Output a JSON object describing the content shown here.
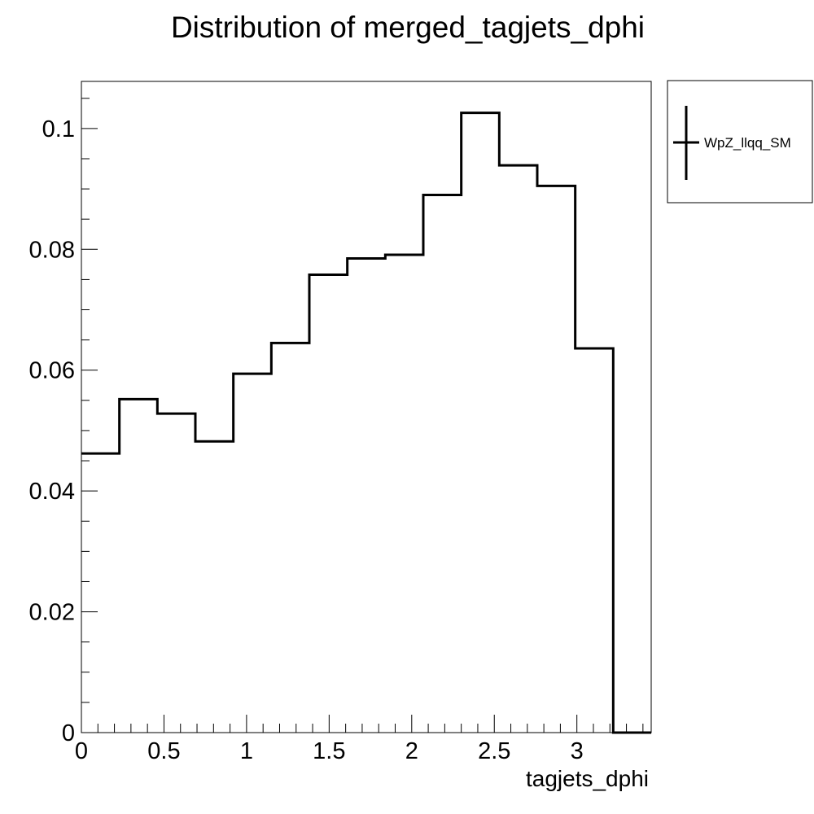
{
  "chart_data": {
    "type": "histogram",
    "title": "Distribution of merged_tagjets_dphi",
    "xlabel": "tagjets_dphi",
    "ylabel": "",
    "xlim": [
      0,
      3.45
    ],
    "ylim": [
      0,
      0.1078
    ],
    "x_ticks": [
      "0",
      "0.5",
      "1",
      "1.5",
      "2",
      "2.5",
      "3"
    ],
    "x_tick_values": [
      0,
      0.5,
      1,
      1.5,
      2,
      2.5,
      3
    ],
    "y_ticks": [
      "0",
      "0.02",
      "0.04",
      "0.06",
      "0.08",
      "0.1"
    ],
    "y_tick_values": [
      0,
      0.02,
      0.04,
      0.06,
      0.08,
      0.1
    ],
    "bin_edges": [
      0,
      0.23,
      0.46,
      0.69,
      0.92,
      1.15,
      1.38,
      1.61,
      1.84,
      2.07,
      2.3,
      2.53,
      2.76,
      2.99,
      3.22,
      3.45
    ],
    "values": [
      0.0462,
      0.0552,
      0.0528,
      0.0482,
      0.0594,
      0.0645,
      0.0758,
      0.0785,
      0.0791,
      0.089,
      0.1026,
      0.0939,
      0.0905,
      0.0636,
      0.0
    ],
    "series": [
      {
        "name": "WpZ_llqq_SM",
        "color": "#000000"
      }
    ],
    "grid": false,
    "legend_position": "outside-top-right"
  }
}
